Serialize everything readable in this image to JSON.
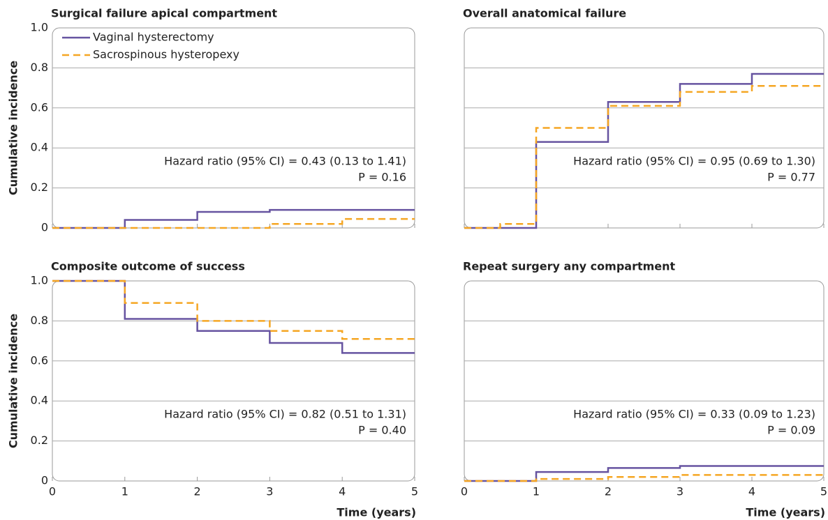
{
  "chart_data": [
    {
      "type": "step",
      "title": "Surgical failure apical compartment",
      "ylabel": "Cumulative incidence",
      "xlim": [
        0,
        5
      ],
      "xticks": [
        0,
        1,
        2,
        3,
        4,
        5
      ],
      "ylim": [
        0,
        1
      ],
      "yticks": [
        0,
        0.2,
        0.4,
        0.6,
        0.8,
        {
          "value": 1,
          "label": "1.0"
        }
      ],
      "xtick_labels": false,
      "ytick_labels": true,
      "grid": true,
      "legend": "upper left",
      "annotations": [
        "Hazard ratio (95% CI) = 0.43 (0.13 to 1.41)",
        "P = 0.16"
      ],
      "series": [
        {
          "name": "Vaginal hysterectomy",
          "color": "#6653a0",
          "style": "solid",
          "x": [
            0,
            1,
            2,
            3,
            5
          ],
          "values": [
            0,
            0.04,
            0.08,
            0.09,
            0.09
          ]
        },
        {
          "name": "Sacrospinous hysteropexy",
          "color": "#f5a623",
          "style": "dashed",
          "x": [
            0,
            3,
            4,
            5
          ],
          "values": [
            0,
            0.02,
            0.045,
            0.045
          ]
        }
      ]
    },
    {
      "type": "step",
      "title": "Overall anatomical failure",
      "xlim": [
        0,
        5
      ],
      "xticks": [
        0,
        1,
        2,
        3,
        4,
        5
      ],
      "ylim": [
        0,
        1
      ],
      "yticks": [
        0,
        0.2,
        0.4,
        0.6,
        0.8,
        {
          "value": 1,
          "label": "1.0"
        }
      ],
      "xtick_labels": false,
      "ytick_labels": false,
      "grid": true,
      "legend": "none",
      "annotations": [
        "Hazard ratio (95% CI) = 0.95 (0.69 to 1.30)",
        "P = 0.77"
      ],
      "series": [
        {
          "name": "Vaginal hysterectomy",
          "color": "#6653a0",
          "style": "solid",
          "x": [
            0,
            1,
            2,
            3,
            4,
            5
          ],
          "values": [
            0,
            0.43,
            0.63,
            0.72,
            0.77,
            0.77
          ]
        },
        {
          "name": "Sacrospinous hysteropexy",
          "color": "#f5a623",
          "style": "dashed",
          "x": [
            0,
            0.5,
            1,
            2,
            3,
            4,
            5
          ],
          "values": [
            0,
            0.02,
            0.5,
            0.61,
            0.68,
            0.71,
            0.71
          ]
        }
      ]
    },
    {
      "type": "step",
      "title": "Composite outcome of success",
      "ylabel": "Cumulative incidence",
      "xlabel": "Time (years)",
      "xlim": [
        0,
        5
      ],
      "xticks": [
        0,
        1,
        2,
        3,
        4,
        5
      ],
      "ylim": [
        0,
        1
      ],
      "yticks": [
        0,
        0.2,
        0.4,
        0.6,
        0.8,
        {
          "value": 1,
          "label": "1.0"
        }
      ],
      "xtick_labels": true,
      "ytick_labels": true,
      "grid": true,
      "legend": "none",
      "annotations": [
        "Hazard ratio (95% CI) = 0.82 (0.51 to 1.31)",
        "P = 0.40"
      ],
      "series": [
        {
          "name": "Vaginal hysterectomy",
          "color": "#6653a0",
          "style": "solid",
          "x": [
            0,
            1,
            2,
            3,
            4,
            5
          ],
          "values": [
            1,
            0.81,
            0.75,
            0.69,
            0.64,
            0.64
          ]
        },
        {
          "name": "Sacrospinous hysteropexy",
          "color": "#f5a623",
          "style": "dashed",
          "x": [
            0,
            1,
            2,
            3,
            4,
            5
          ],
          "values": [
            1,
            0.89,
            0.8,
            0.75,
            0.71,
            0.71
          ]
        }
      ]
    },
    {
      "type": "step",
      "title": "Repeat surgery any compartment",
      "xlabel": "Time (years)",
      "xlim": [
        0,
        5
      ],
      "xticks": [
        0,
        1,
        2,
        3,
        4,
        5
      ],
      "ylim": [
        0,
        1
      ],
      "yticks": [
        0,
        0.2,
        0.4,
        0.6,
        0.8,
        {
          "value": 1,
          "label": "1.0"
        }
      ],
      "xtick_labels": true,
      "ytick_labels": false,
      "grid": true,
      "legend": "none",
      "annotations": [
        "Hazard ratio (95% CI) = 0.33 (0.09 to 1.23)",
        "P = 0.09"
      ],
      "series": [
        {
          "name": "Vaginal hysterectomy",
          "color": "#6653a0",
          "style": "solid",
          "x": [
            0,
            1,
            2,
            3,
            5
          ],
          "values": [
            0,
            0.045,
            0.065,
            0.075,
            0.075
          ]
        },
        {
          "name": "Sacrospinous hysteropexy",
          "color": "#f5a623",
          "style": "dashed",
          "x": [
            0,
            1,
            2,
            3,
            5
          ],
          "values": [
            0,
            0.01,
            0.02,
            0.03,
            0.03
          ]
        }
      ]
    }
  ]
}
